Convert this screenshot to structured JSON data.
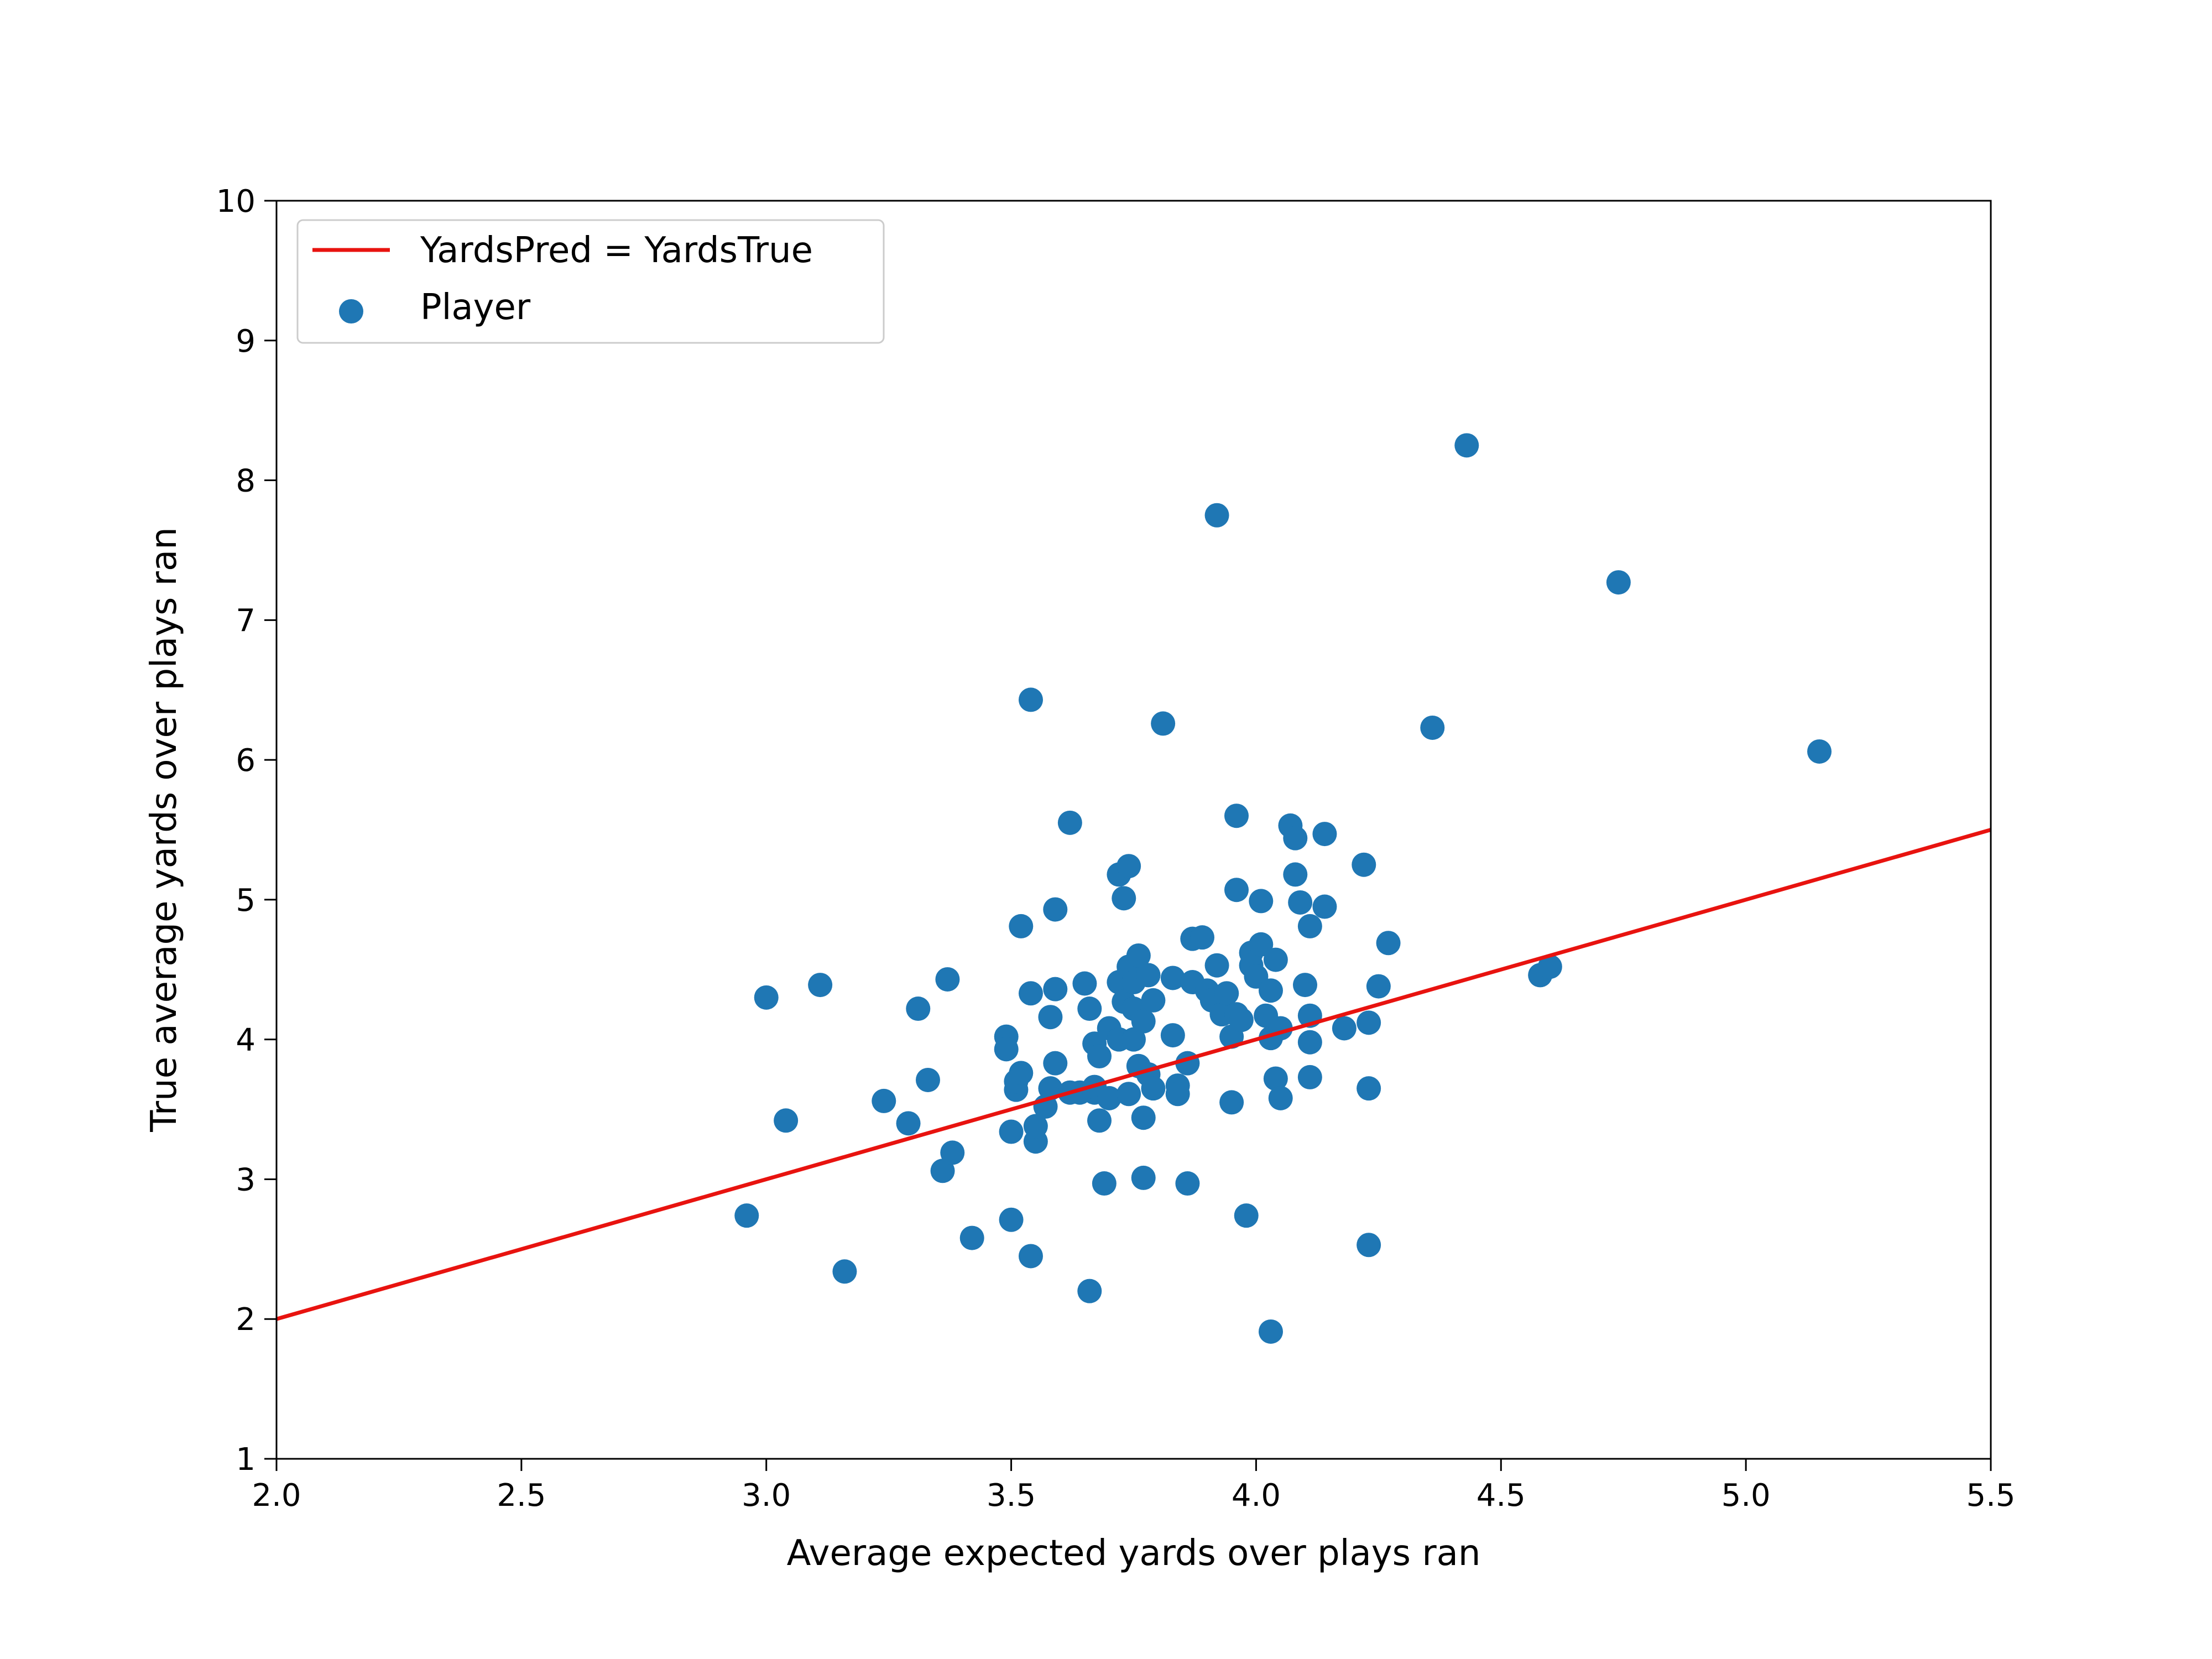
{
  "chart_data": {
    "type": "scatter",
    "title": "",
    "xlabel": "Average expected yards over plays ran",
    "ylabel": "True average yards over plays ran",
    "xlim": [
      2.0,
      5.5
    ],
    "ylim": [
      1,
      10
    ],
    "xticks": [
      "2.0",
      "2.5",
      "3.0",
      "3.5",
      "4.0",
      "4.5",
      "5.0",
      "5.5"
    ],
    "yticks": [
      "1",
      "2",
      "3",
      "4",
      "5",
      "6",
      "7",
      "8",
      "9",
      "10"
    ],
    "grid": false,
    "legend_position": "upper-left",
    "line_color": "#e8130f",
    "point_color": "#1f77b4",
    "series": [
      {
        "name": "YardsPred = YardsTrue",
        "kind": "line",
        "x": [
          2.0,
          5.5
        ],
        "y": [
          2.0,
          5.5
        ]
      },
      {
        "name": "Player",
        "kind": "scatter",
        "points": [
          [
            2.96,
            2.74
          ],
          [
            3.0,
            4.3
          ],
          [
            3.04,
            3.42
          ],
          [
            3.11,
            4.39
          ],
          [
            3.16,
            2.34
          ],
          [
            3.24,
            3.56
          ],
          [
            3.29,
            3.4
          ],
          [
            3.31,
            4.22
          ],
          [
            3.33,
            3.71
          ],
          [
            3.36,
            3.06
          ],
          [
            3.37,
            4.43
          ],
          [
            3.38,
            3.19
          ],
          [
            3.42,
            2.58
          ],
          [
            3.49,
            4.02
          ],
          [
            3.49,
            3.93
          ],
          [
            3.5,
            3.34
          ],
          [
            3.5,
            2.71
          ],
          [
            3.51,
            3.64
          ],
          [
            3.51,
            3.7
          ],
          [
            3.52,
            3.76
          ],
          [
            3.52,
            4.81
          ],
          [
            3.54,
            4.33
          ],
          [
            3.54,
            2.45
          ],
          [
            3.54,
            6.43
          ],
          [
            3.55,
            3.27
          ],
          [
            3.55,
            3.38
          ],
          [
            3.57,
            3.52
          ],
          [
            3.58,
            3.65
          ],
          [
            3.58,
            4.16
          ],
          [
            3.59,
            4.93
          ],
          [
            3.59,
            4.36
          ],
          [
            3.59,
            3.83
          ],
          [
            3.62,
            3.62
          ],
          [
            3.62,
            5.55
          ],
          [
            3.64,
            3.62
          ],
          [
            3.65,
            4.4
          ],
          [
            3.66,
            2.2
          ],
          [
            3.66,
            4.22
          ],
          [
            3.67,
            3.62
          ],
          [
            3.67,
            3.66
          ],
          [
            3.67,
            3.97
          ],
          [
            3.68,
            3.42
          ],
          [
            3.68,
            3.88
          ],
          [
            3.69,
            2.97
          ],
          [
            3.7,
            4.08
          ],
          [
            3.7,
            3.58
          ],
          [
            3.72,
            4.0
          ],
          [
            3.72,
            4.41
          ],
          [
            3.72,
            5.18
          ],
          [
            3.73,
            5.01
          ],
          [
            3.73,
            4.27
          ],
          [
            3.74,
            5.24
          ],
          [
            3.74,
            4.52
          ],
          [
            3.74,
            3.61
          ],
          [
            3.75,
            4.41
          ],
          [
            3.75,
            4.0
          ],
          [
            3.75,
            4.22
          ],
          [
            3.76,
            4.6
          ],
          [
            3.76,
            3.81
          ],
          [
            3.77,
            3.01
          ],
          [
            3.77,
            3.44
          ],
          [
            3.77,
            4.13
          ],
          [
            3.78,
            4.46
          ],
          [
            3.78,
            3.75
          ],
          [
            3.79,
            4.28
          ],
          [
            3.79,
            3.65
          ],
          [
            3.81,
            6.26
          ],
          [
            3.83,
            4.44
          ],
          [
            3.83,
            4.03
          ],
          [
            3.84,
            3.67
          ],
          [
            3.84,
            3.61
          ],
          [
            3.86,
            3.83
          ],
          [
            3.86,
            2.97
          ],
          [
            3.87,
            4.72
          ],
          [
            3.87,
            4.41
          ],
          [
            3.89,
            4.73
          ],
          [
            3.9,
            4.35
          ],
          [
            3.91,
            4.28
          ],
          [
            3.92,
            7.75
          ],
          [
            3.92,
            4.53
          ],
          [
            3.93,
            4.18
          ],
          [
            3.94,
            4.33
          ],
          [
            3.95,
            3.55
          ],
          [
            3.95,
            4.02
          ],
          [
            3.96,
            4.18
          ],
          [
            3.96,
            5.6
          ],
          [
            3.96,
            5.07
          ],
          [
            3.97,
            4.14
          ],
          [
            3.98,
            2.74
          ],
          [
            3.99,
            4.62
          ],
          [
            3.99,
            4.53
          ],
          [
            4.0,
            4.45
          ],
          [
            4.01,
            4.99
          ],
          [
            4.01,
            4.68
          ],
          [
            4.02,
            4.17
          ],
          [
            4.03,
            4.01
          ],
          [
            4.03,
            4.35
          ],
          [
            4.03,
            1.91
          ],
          [
            4.04,
            3.72
          ],
          [
            4.04,
            4.57
          ],
          [
            4.05,
            3.58
          ],
          [
            4.05,
            4.08
          ],
          [
            4.07,
            5.53
          ],
          [
            4.08,
            5.44
          ],
          [
            4.08,
            5.18
          ],
          [
            4.09,
            4.98
          ],
          [
            4.1,
            4.39
          ],
          [
            4.11,
            4.17
          ],
          [
            4.11,
            4.81
          ],
          [
            4.11,
            3.98
          ],
          [
            4.11,
            3.73
          ],
          [
            4.14,
            5.47
          ],
          [
            4.14,
            4.95
          ],
          [
            4.18,
            4.08
          ],
          [
            4.22,
            5.25
          ],
          [
            4.23,
            4.12
          ],
          [
            4.23,
            3.65
          ],
          [
            4.23,
            2.53
          ],
          [
            4.25,
            4.38
          ],
          [
            4.27,
            4.69
          ],
          [
            4.36,
            6.23
          ],
          [
            4.43,
            8.25
          ],
          [
            4.58,
            4.46
          ],
          [
            4.6,
            4.52
          ],
          [
            4.74,
            7.27
          ],
          [
            5.15,
            6.06
          ]
        ]
      }
    ]
  }
}
